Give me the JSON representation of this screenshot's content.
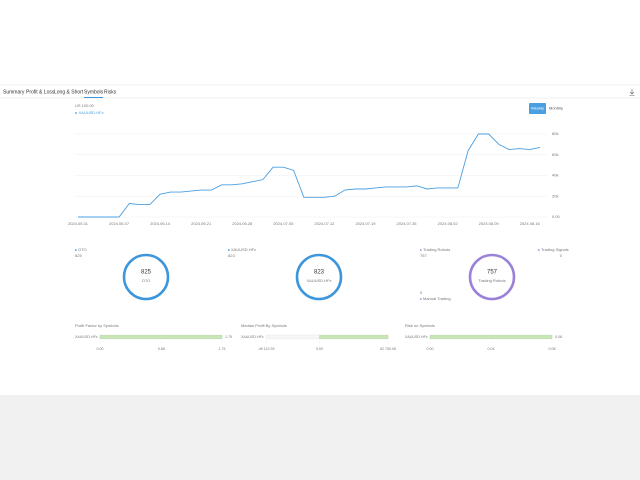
{
  "tabs": [
    "Summary",
    "Profit & Loss",
    "Long & Short",
    "Symbols",
    "Risks"
  ],
  "active_tab": 3,
  "chart_data": {
    "type": "line",
    "title": "US 100.00",
    "buttons": [
      "Weekly",
      "Monthly"
    ],
    "categories": [
      "2024.05.31",
      null,
      null,
      null,
      "2024.06.07",
      null,
      null,
      null,
      "2024.06.14",
      null,
      null,
      null,
      "2024.06.21",
      null,
      null,
      null,
      "2024.06.28",
      null,
      null,
      null,
      "2024.07.05",
      null,
      null,
      null,
      "2024.07.12",
      null,
      null,
      null,
      "2024.07.19",
      null,
      null,
      null,
      "2024.07.26",
      null,
      null,
      null,
      "2024.08.02",
      null,
      null,
      null,
      "2024.08.09",
      null,
      null,
      null,
      "2024.08.16",
      null
    ],
    "series": [
      {
        "name": "XAUUSD.HFx",
        "color": "#4a9fe0",
        "values": [
          0,
          0,
          0,
          0,
          0,
          13000,
          12000,
          12000,
          22000,
          24000,
          24000,
          25000,
          26000,
          26000,
          31000,
          31000,
          32000,
          34000,
          36000,
          48000,
          48000,
          45000,
          19000,
          19000,
          19000,
          20000,
          26000,
          27000,
          27000,
          28000,
          29000,
          29000,
          29000,
          30000,
          27000,
          28000,
          28000,
          28000,
          64000,
          80000,
          80000,
          70000,
          65000,
          66000,
          65000,
          67000
        ]
      }
    ],
    "ylim": [
      0,
      80000
    ],
    "yticks": [
      {
        "value": 0,
        "label": "0.00"
      },
      {
        "value": 20000,
        "label": "20k"
      },
      {
        "value": 40000,
        "label": "40k"
      },
      {
        "value": 60000,
        "label": "60k"
      },
      {
        "value": 80000,
        "label": "80k"
      }
    ],
    "grid": true
  },
  "donuts": [
    {
      "legend": [
        {
          "name": "OTO",
          "value": 825
        }
      ],
      "center_value": 825,
      "center_label": "OTO",
      "color": "#3d96dc"
    },
    {
      "legend": [
        {
          "name": "XAUUSD.HFx",
          "value": 823
        }
      ],
      "center_value": 823,
      "center_label": "XAUUSD.HFx",
      "color": "#3d96dc"
    },
    {
      "legend": [
        {
          "name": "Trading Robots",
          "value": 757
        },
        {
          "name": "Trading Signals",
          "value": 0
        },
        {
          "name": "Manual Trading",
          "value": 0
        }
      ],
      "center_value": 757,
      "center_label": "Trading Robots",
      "color": "#9b82d9"
    }
  ],
  "bar_panels": [
    {
      "title": "Profit Factor by Symbols",
      "category": "XAUUSD.HFx",
      "value": 1.75,
      "value_label": "1.75",
      "xlim": [
        0,
        1.75
      ],
      "xticks": [
        {
          "value": 0,
          "label": "0.00"
        },
        {
          "value": 0.88,
          "label": "0.88"
        },
        {
          "value": 1.75,
          "label": "1.75"
        }
      ]
    },
    {
      "title": "Median Profit By Symbols",
      "category": "XAUUSD.HFx",
      "value": 62750.06,
      "xlim": [
        -49112.93,
        62750.06
      ],
      "xticks": [
        {
          "value": -49112.93,
          "label": "-49 112.93"
        },
        {
          "value": 0,
          "label": "0.00"
        },
        {
          "value": 62750.06,
          "label": "62 750.06"
        }
      ]
    },
    {
      "title": "Risk on Symbols",
      "category": "XAUUSD.HFx",
      "value": 0.08,
      "value_label": "0.08",
      "xlim": [
        0,
        0.08
      ],
      "xticks": [
        {
          "value": 0,
          "label": "0.00"
        },
        {
          "value": 0.04,
          "label": "0.04"
        },
        {
          "value": 0.08,
          "label": "0.08"
        }
      ]
    }
  ]
}
